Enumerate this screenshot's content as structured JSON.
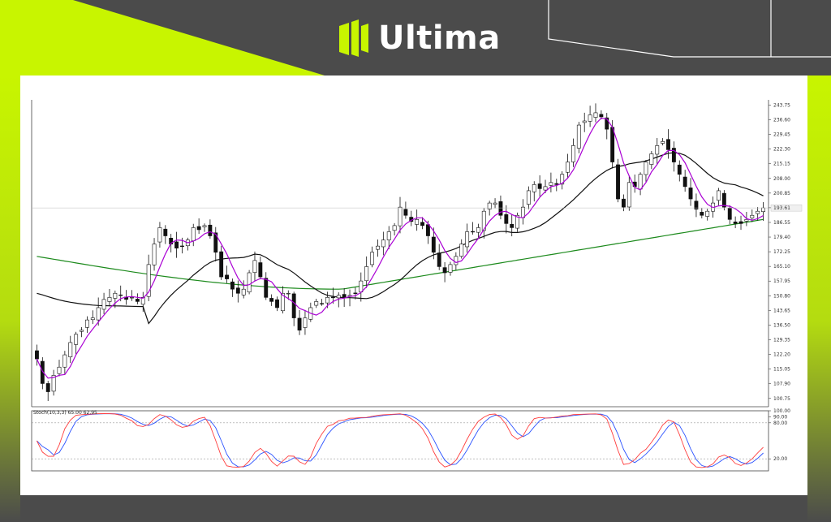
{
  "brand": {
    "name": "Ultima",
    "accent": "#c8f500",
    "background": "#4b4b4b"
  },
  "chart_data": {
    "type": "candlestick",
    "title": "",
    "price_axis": {
      "ticks": [
        243.75,
        236.6,
        229.45,
        222.3,
        215.15,
        208.0,
        200.85,
        193.7,
        186.55,
        179.4,
        172.25,
        165.1,
        157.95,
        150.8,
        143.65,
        136.5,
        129.35,
        122.2,
        115.05,
        107.9,
        100.75
      ],
      "ylim": [
        96.7,
        246.3
      ],
      "current_price": "193.61"
    },
    "closes": [
      120,
      108,
      104,
      112,
      116,
      122,
      128,
      132,
      134,
      139,
      140,
      145,
      149,
      150,
      152,
      151,
      149,
      150,
      148,
      150,
      166,
      176,
      184,
      180,
      176,
      174,
      175,
      178,
      184,
      183,
      185,
      180,
      172,
      160,
      159,
      154,
      152,
      154,
      162,
      168,
      160,
      150,
      148,
      145,
      152,
      152,
      140,
      134,
      140,
      145,
      148,
      147,
      150,
      150,
      151,
      150,
      151,
      152,
      158,
      165,
      172,
      175,
      178,
      182,
      185,
      194,
      190,
      187,
      188,
      185,
      180,
      172,
      165,
      162,
      166,
      170,
      176,
      182,
      182,
      184,
      192,
      196,
      196,
      190,
      186,
      184,
      190,
      194,
      202,
      205,
      203,
      204,
      206,
      205,
      210,
      216,
      224,
      234,
      236,
      239,
      240,
      238,
      232,
      216,
      198,
      194,
      206,
      204,
      210,
      216,
      220,
      224,
      226,
      222,
      216,
      210,
      204,
      198,
      193,
      190,
      192,
      196,
      202,
      194,
      188,
      186,
      186,
      188,
      190,
      192,
      193.61
    ],
    "indicators": {
      "ma_fast_color": "#aa00d4",
      "ma_mid_color": "#111111",
      "ma_slow_color": "#1c8a1c",
      "stoch_k_color": "#ff3d3d",
      "stoch_d_color": "#2b52ff"
    },
    "stochastic": {
      "label": "Stoch(10,3,3) 65.00 62.95",
      "ticks": [
        100.0,
        90.0,
        80.0,
        20.0
      ],
      "levels": [
        80,
        20
      ],
      "ylim": [
        0,
        100
      ]
    },
    "grid": false
  }
}
